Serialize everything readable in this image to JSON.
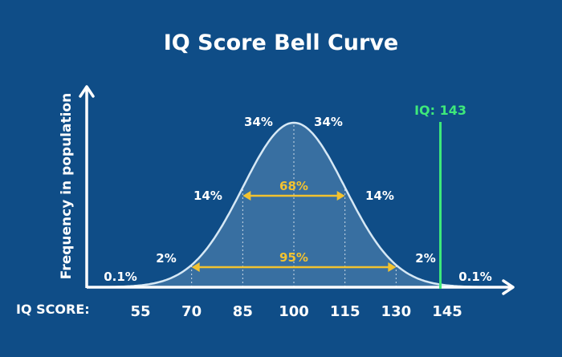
{
  "colors": {
    "background": "#0f4d87",
    "curve_fill": "#3f76a6",
    "curve_stroke": "#d6e8f5",
    "axis": "#ffffff",
    "band_arrow": "#f2c230",
    "marker": "#3ee87a"
  },
  "chart_data": {
    "type": "area",
    "title": "IQ Score Bell Curve",
    "xlabel": "IQ SCORE:",
    "ylabel": "Frequency in population",
    "distribution": {
      "mean": 100,
      "sd": 15
    },
    "x_ticks": [
      55,
      70,
      85,
      100,
      115,
      130,
      145
    ],
    "xlim": [
      45,
      162
    ],
    "grid": false,
    "segments": [
      {
        "from": 40,
        "to": 55,
        "label": "0.1%"
      },
      {
        "from": 55,
        "to": 70,
        "label": "2%"
      },
      {
        "from": 70,
        "to": 85,
        "label": "14%"
      },
      {
        "from": 85,
        "to": 100,
        "label": "34%"
      },
      {
        "from": 100,
        "to": 115,
        "label": "34%"
      },
      {
        "from": 115,
        "to": 130,
        "label": "14%"
      },
      {
        "from": 130,
        "to": 145,
        "label": "2%"
      },
      {
        "from": 145,
        "to": 160,
        "label": "0.1%"
      }
    ],
    "bands": [
      {
        "from": 85,
        "to": 115,
        "label": "68%"
      },
      {
        "from": 70,
        "to": 130,
        "label": "95%"
      }
    ],
    "marker": {
      "x": 143,
      "label": "IQ: 143"
    }
  }
}
